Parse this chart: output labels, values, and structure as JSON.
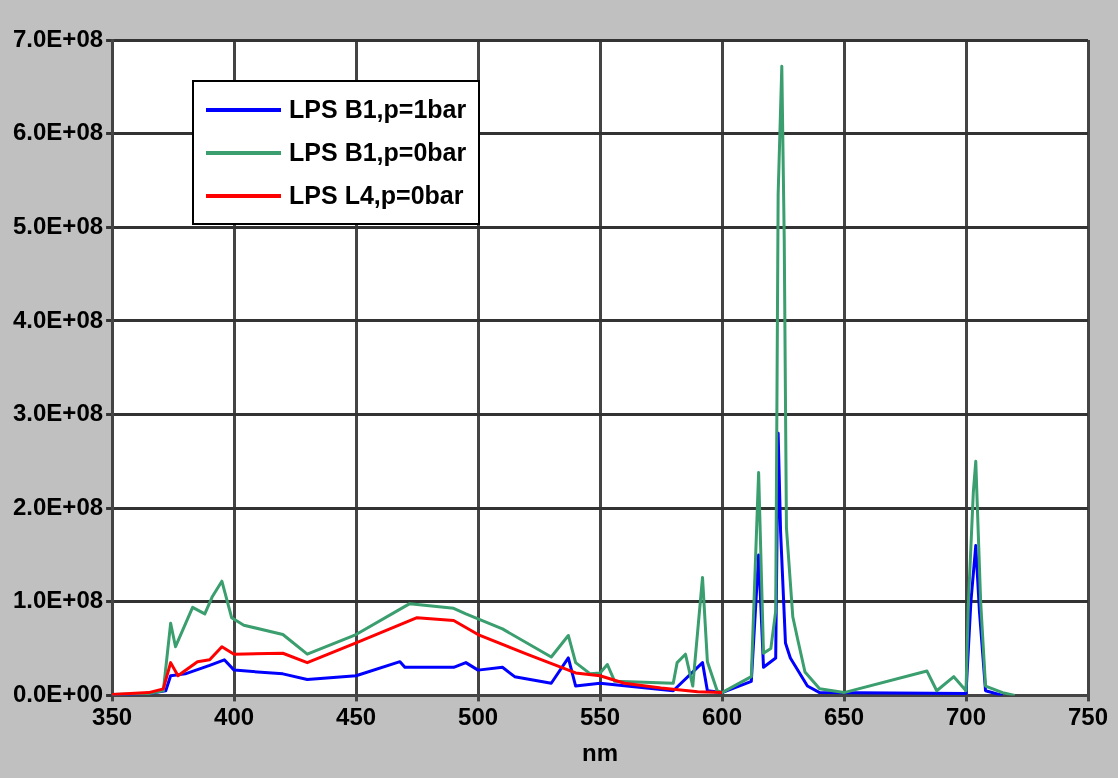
{
  "chart_data": {
    "type": "line",
    "xlabel": "nm",
    "xlim": [
      350,
      750
    ],
    "xticks": [
      350,
      400,
      450,
      500,
      550,
      600,
      650,
      700,
      750
    ],
    "ylim": [
      0,
      700000000.0
    ],
    "yticks": [
      {
        "value": 0,
        "label": "0.0E+00"
      },
      {
        "value": 100000000.0,
        "label": "1.0E+08"
      },
      {
        "value": 200000000.0,
        "label": "2.0E+08"
      },
      {
        "value": 300000000.0,
        "label": "3.0E+08"
      },
      {
        "value": 400000000.0,
        "label": "4.0E+08"
      },
      {
        "value": 500000000.0,
        "label": "5.0E+08"
      },
      {
        "value": 600000000.0,
        "label": "6.0E+08"
      },
      {
        "value": 700000000.0,
        "label": "7.0E+08"
      }
    ],
    "grid": true,
    "legend": "top left",
    "marker": "none",
    "line_style": "solid",
    "series": [
      {
        "name": "LPS B1,p=1bar",
        "color": "#0000ff",
        "x": [
          350,
          365,
          372,
          374,
          380,
          390,
          396,
          400,
          420,
          430,
          450,
          468,
          470,
          490,
          495,
          500,
          510,
          515,
          530,
          537,
          540,
          550,
          580,
          592,
          594,
          600,
          612,
          615,
          617,
          622,
          623,
          624,
          626,
          628,
          635,
          640,
          700,
          702,
          704,
          705.5,
          708,
          715
        ],
        "values": [
          0,
          2000000.0,
          5000000.0,
          21000000.0,
          23000000.0,
          32000000.0,
          38000000.0,
          27000000.0,
          23000000.0,
          17000000.0,
          21000000.0,
          36000000.0,
          30000000.0,
          30000000.0,
          35000000.0,
          27000000.0,
          30000000.0,
          20000000.0,
          13000000.0,
          40000000.0,
          10000000.0,
          13000000.0,
          5000000.0,
          35000000.0,
          5000000.0,
          3000000.0,
          15000000.0,
          150000000.0,
          30000000.0,
          40000000.0,
          280000000.0,
          175000000.0,
          56000000.0,
          40000000.0,
          10000000.0,
          3000000.0,
          2000000.0,
          100000000.0,
          160000000.0,
          90000000.0,
          5000000.0,
          0
        ]
      },
      {
        "name": "LPS B1,p=0bar",
        "color": "#3a9e6e",
        "x": [
          350,
          365,
          371,
          374,
          376,
          383,
          388,
          391,
          395,
          399,
          404,
          420,
          430,
          450,
          472,
          490,
          495,
          510,
          530,
          537,
          540,
          546,
          550,
          553,
          556,
          580,
          581.6,
          585,
          588,
          592,
          594,
          598,
          600,
          612,
          615,
          617,
          620,
          622,
          623,
          624.5,
          625.5,
          626.4,
          629,
          631,
          634,
          640,
          650,
          684,
          688,
          695,
          700,
          701,
          703,
          704,
          706,
          708,
          715,
          720
        ],
        "values": [
          1000000.0,
          2000000.0,
          5000000.0,
          77000000.0,
          52000000.0,
          94000000.0,
          87000000.0,
          105000000.0,
          122000000.0,
          83000000.0,
          75000000.0,
          65000000.0,
          44000000.0,
          65000000.0,
          98000000.0,
          93000000.0,
          87000000.0,
          71000000.0,
          41000000.0,
          64000000.0,
          35000000.0,
          23000000.0,
          24000000.0,
          33000000.0,
          15000000.0,
          13000000.0,
          35000000.0,
          44000000.0,
          10000000.0,
          126000000.0,
          36000000.0,
          5000000.0,
          3000000.0,
          20000000.0,
          238000000.0,
          45000000.0,
          50000000.0,
          90000000.0,
          535000000.0,
          672000000.0,
          486000000.0,
          179000000.0,
          84000000.0,
          60000000.0,
          25000000.0,
          7000000.0,
          3000000.0,
          26000000.0,
          5000000.0,
          20000000.0,
          5000000.0,
          100000000.0,
          217000000.0,
          250000000.0,
          100000000.0,
          10000000.0,
          3000000.0,
          0
        ]
      },
      {
        "name": "LPS L4,p=0bar",
        "color": "#ff0000",
        "x": [
          350,
          365,
          371,
          374,
          377,
          385,
          390,
          395,
          400,
          420,
          430,
          450,
          475,
          490,
          500,
          520,
          540,
          550,
          560,
          575,
          590,
          600
        ],
        "values": [
          1000000.0,
          3000000.0,
          7000000.0,
          35000000.0,
          21000000.0,
          36000000.0,
          38000000.0,
          52000000.0,
          44000000.0,
          45000000.0,
          35000000.0,
          56000000.0,
          83000000.0,
          80000000.0,
          65000000.0,
          44000000.0,
          24000000.0,
          21000000.0,
          13000000.0,
          8000000.0,
          4000000.0,
          3000000.0
        ]
      }
    ]
  }
}
